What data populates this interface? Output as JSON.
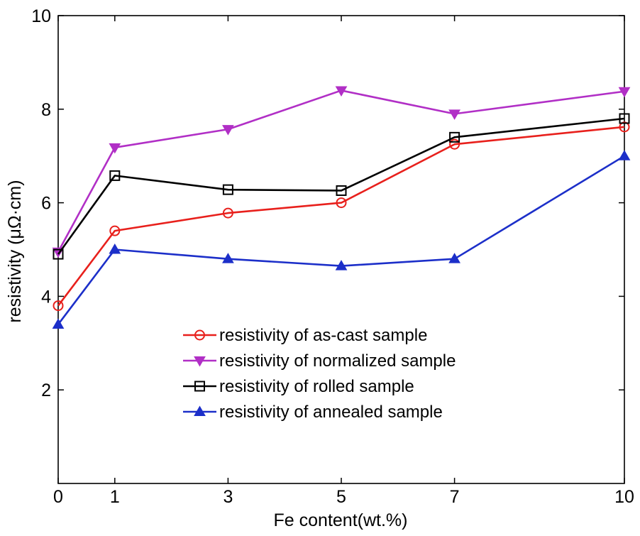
{
  "chart_data": {
    "type": "line",
    "title": "",
    "xlabel": "Fe content(wt.%)",
    "ylabel": "resistivity (μΩ·cm)",
    "x": [
      0,
      1,
      3,
      5,
      7,
      10
    ],
    "x_tick_labels": [
      "0",
      "1",
      "3",
      "5",
      "7",
      "10"
    ],
    "y_ticks": [
      2,
      4,
      6,
      8,
      10
    ],
    "y_tick_labels": [
      "2",
      "4",
      "6",
      "8",
      "10"
    ],
    "xlim": [
      0,
      10
    ],
    "ylim": [
      0,
      10
    ],
    "grid": false,
    "legend_position": "lower-center",
    "series": [
      {
        "name": "resistivity of as-cast sample",
        "color": "#e8201c",
        "marker": "circle-open",
        "values": [
          3.8,
          5.4,
          5.78,
          6.0,
          7.25,
          7.62
        ]
      },
      {
        "name": "resistivity of normalized sample",
        "color": "#b12fc6",
        "marker": "triangle-down-filled",
        "values": [
          4.95,
          7.18,
          7.57,
          8.4,
          7.9,
          8.38
        ]
      },
      {
        "name": "resistivity of rolled sample",
        "color": "#000000",
        "marker": "square-open",
        "values": [
          4.9,
          6.58,
          6.28,
          6.26,
          7.4,
          7.8
        ]
      },
      {
        "name": "resistivity of annealed sample",
        "color": "#1c2fc9",
        "marker": "triangle-up-filled",
        "values": [
          3.4,
          5.0,
          4.8,
          4.65,
          4.8,
          7.0
        ]
      }
    ]
  }
}
